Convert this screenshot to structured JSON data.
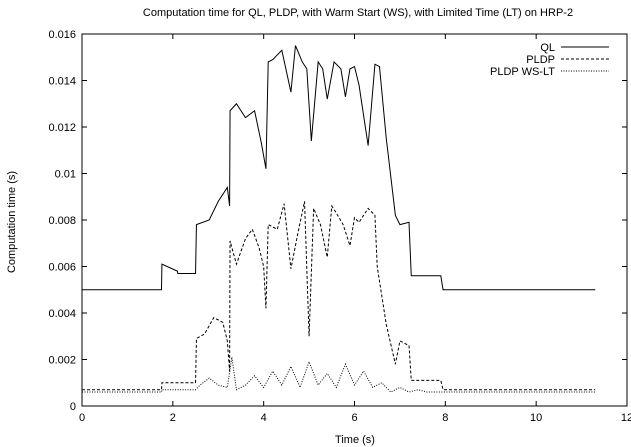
{
  "chart_data": {
    "type": "line",
    "title": "Computation time for QL, PLDP, with Warm Start (WS), with Limited Time (LT) on HRP-2",
    "xlabel": "Time (s)",
    "ylabel": "Computation time (s)",
    "xlim": [
      0,
      12
    ],
    "ylim": [
      0,
      0.016
    ],
    "xticks": [
      "0",
      "2",
      "4",
      "6",
      "8",
      "10",
      "12"
    ],
    "yticks": [
      "0",
      "0.002",
      "0.004",
      "0.006",
      "0.008",
      "0.01",
      "0.012",
      "0.014",
      "0.016"
    ],
    "grid": false,
    "legend_position": "top-right",
    "series": [
      {
        "name": "QL",
        "style": "solid",
        "x": [
          0,
          1.75,
          1.76,
          2.1,
          2.11,
          2.5,
          2.52,
          2.8,
          3.0,
          3.2,
          3.25,
          3.26,
          3.4,
          3.6,
          3.8,
          3.95,
          4.05,
          4.1,
          4.2,
          4.4,
          4.6,
          4.7,
          4.85,
          4.95,
          5.05,
          5.2,
          5.3,
          5.4,
          5.55,
          5.7,
          5.8,
          5.9,
          6.0,
          6.1,
          6.3,
          6.45,
          6.55,
          6.7,
          6.9,
          7.0,
          7.2,
          7.25,
          7.9,
          7.95,
          11.3
        ],
        "y": [
          0.005,
          0.005,
          0.0061,
          0.0058,
          0.0057,
          0.0057,
          0.0078,
          0.008,
          0.0088,
          0.0094,
          0.0086,
          0.0127,
          0.013,
          0.0124,
          0.0127,
          0.0113,
          0.0102,
          0.0148,
          0.0149,
          0.0153,
          0.0135,
          0.0155,
          0.0148,
          0.0145,
          0.0114,
          0.0148,
          0.0145,
          0.0132,
          0.0148,
          0.0145,
          0.0133,
          0.0145,
          0.0146,
          0.0138,
          0.0112,
          0.0147,
          0.0146,
          0.0115,
          0.0082,
          0.0078,
          0.0079,
          0.0056,
          0.0056,
          0.005,
          0.005
        ]
      },
      {
        "name": "PLDP",
        "style": "dashed",
        "x": [
          0,
          1.75,
          1.76,
          2.1,
          2.5,
          2.52,
          2.7,
          2.9,
          3.1,
          3.2,
          3.25,
          3.26,
          3.4,
          3.6,
          3.75,
          3.9,
          4.0,
          4.05,
          4.1,
          4.3,
          4.45,
          4.6,
          4.75,
          4.9,
          5.0,
          5.1,
          5.25,
          5.4,
          5.5,
          5.6,
          5.75,
          5.9,
          6.0,
          6.1,
          6.3,
          6.45,
          6.5,
          6.7,
          6.9,
          7.0,
          7.2,
          7.25,
          7.9,
          7.95,
          11.3
        ],
        "y": [
          0.0007,
          0.0007,
          0.001,
          0.001,
          0.001,
          0.0029,
          0.0031,
          0.0038,
          0.0036,
          0.0028,
          0.0015,
          0.0071,
          0.0061,
          0.0072,
          0.0076,
          0.0068,
          0.006,
          0.0042,
          0.0078,
          0.0076,
          0.0087,
          0.0059,
          0.0074,
          0.0088,
          0.003,
          0.0085,
          0.0078,
          0.0064,
          0.0086,
          0.0083,
          0.0078,
          0.0069,
          0.0081,
          0.0079,
          0.0085,
          0.0082,
          0.006,
          0.0035,
          0.0018,
          0.0028,
          0.0026,
          0.0011,
          0.0011,
          0.0007,
          0.0007
        ]
      },
      {
        "name": "PLDP WS-LT",
        "style": "dotted",
        "x": [
          0,
          1.75,
          1.76,
          2.5,
          2.6,
          2.8,
          3.0,
          3.2,
          3.3,
          3.4,
          3.6,
          3.8,
          4.0,
          4.2,
          4.4,
          4.6,
          4.8,
          5.0,
          5.2,
          5.4,
          5.6,
          5.8,
          6.0,
          6.2,
          6.4,
          6.6,
          6.8,
          7.0,
          7.2,
          7.4,
          7.6,
          7.95,
          11.3
        ],
        "y": [
          0.0006,
          0.0006,
          0.0007,
          0.0007,
          0.0009,
          0.0012,
          0.0009,
          0.0008,
          0.0021,
          0.0007,
          0.0009,
          0.0013,
          0.0008,
          0.0015,
          0.0009,
          0.0017,
          0.0008,
          0.0019,
          0.0009,
          0.0014,
          0.0008,
          0.0018,
          0.0009,
          0.0015,
          0.0008,
          0.001,
          0.0006,
          0.0008,
          0.0006,
          0.0007,
          0.0006,
          0.0006,
          0.0006
        ]
      }
    ]
  }
}
